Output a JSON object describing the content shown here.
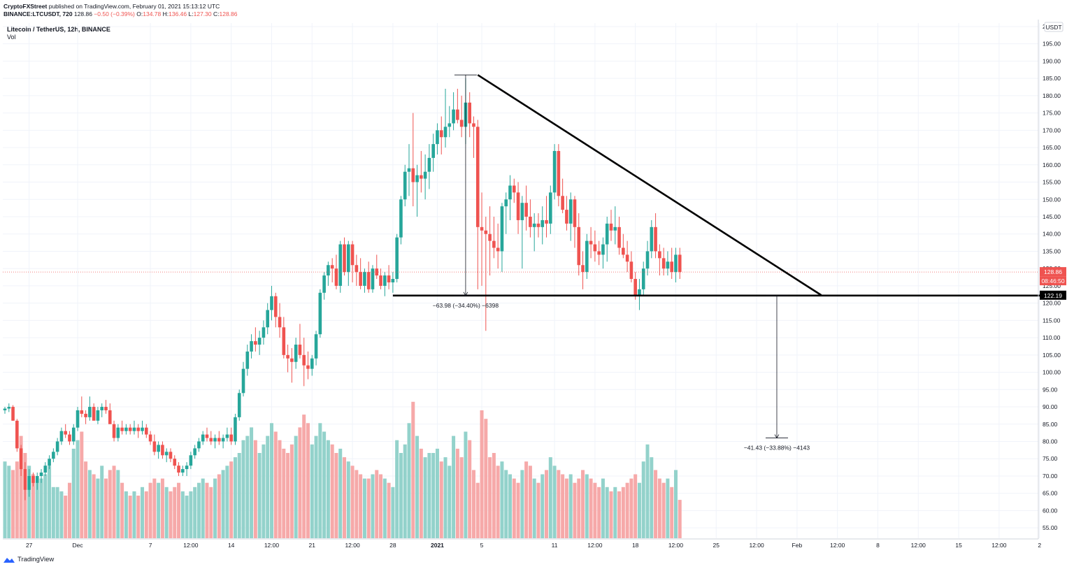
{
  "header": {
    "publisher": "CryptoFXStreet",
    "published_text": "published on TradingView.com, February 01, 2021 15:13:12 UTC",
    "symbol_line": "BINANCE:LTCUSDT, 720",
    "last_price": "128.86",
    "change": "−0.50 (−0.39%)",
    "o_label": "O:",
    "o_value": "134.78",
    "h_label": "H:",
    "h_value": "136.46",
    "l_label": "L:",
    "l_value": "127.30",
    "c_label": "C:",
    "c_value": "128.86"
  },
  "legend": {
    "title": "Litecoin / TetherUS, 12h, BINANCE",
    "volume": "Vol"
  },
  "footer": {
    "brand": "TradingView"
  },
  "colors": {
    "up": "#26a69a",
    "down": "#ef5350",
    "vol_up": "#93d2cb",
    "vol_down": "#f6a9a9",
    "grid": "#f0f3fa",
    "line": "#000000"
  },
  "chart_data": {
    "type": "candlestick",
    "title": "Litecoin / TetherUS, 12h, BINANCE",
    "ylim": [
      52,
      201
    ],
    "y_ticks": [
      55,
      60,
      65,
      70,
      75,
      80,
      85,
      90,
      95,
      100,
      105,
      110,
      115,
      120,
      125,
      130,
      135,
      140,
      145,
      150,
      155,
      160,
      165,
      170,
      175,
      180,
      185,
      190,
      195,
      200
    ],
    "currency_label": "USDT",
    "x_ticks": [
      {
        "i": 6,
        "label": "27"
      },
      {
        "i": 18,
        "label": "Dec"
      },
      {
        "i": 36,
        "label": "7"
      },
      {
        "i": 46,
        "label": "12:00"
      },
      {
        "i": 56,
        "label": "14"
      },
      {
        "i": 66,
        "label": "12:00"
      },
      {
        "i": 76,
        "label": "21"
      },
      {
        "i": 86,
        "label": "12:00"
      },
      {
        "i": 96,
        "label": "28"
      },
      {
        "i": 107,
        "label": "2021"
      },
      {
        "i": 118,
        "label": "5"
      },
      {
        "i": 136,
        "label": "11"
      },
      {
        "i": 146,
        "label": "12:00"
      },
      {
        "i": 156,
        "label": "18"
      },
      {
        "i": 166,
        "label": "12:00"
      },
      {
        "i": 176,
        "label": "25"
      },
      {
        "i": 186,
        "label": "12:00"
      },
      {
        "i": 196,
        "label": "Feb"
      },
      {
        "i": 206,
        "label": "12:00"
      },
      {
        "i": 216,
        "label": "8"
      },
      {
        "i": 226,
        "label": "12:00"
      },
      {
        "i": 236,
        "label": "15"
      },
      {
        "i": 246,
        "label": "12:00"
      },
      {
        "i": 256,
        "label": "2"
      }
    ],
    "candles": [
      [
        89,
        90,
        88,
        89.5,
        18
      ],
      [
        89.5,
        91,
        88.5,
        90,
        17
      ],
      [
        90,
        90.5,
        86,
        86,
        16
      ],
      [
        86,
        86.5,
        77,
        78,
        18
      ],
      [
        78,
        79,
        70,
        72,
        24
      ],
      [
        72,
        74,
        63,
        66,
        20
      ],
      [
        66,
        72,
        64,
        70,
        17
      ],
      [
        70,
        71,
        67,
        68,
        15
      ],
      [
        68,
        71,
        66,
        70,
        13
      ],
      [
        70,
        72,
        68,
        71,
        14
      ],
      [
        71,
        74,
        70,
        73,
        15
      ],
      [
        73,
        76,
        72,
        75,
        17
      ],
      [
        75,
        78,
        74,
        77,
        12
      ],
      [
        77,
        81,
        76,
        80,
        12
      ],
      [
        80,
        84,
        79,
        83,
        11
      ],
      [
        83,
        85,
        81,
        82,
        10
      ],
      [
        82,
        83,
        79,
        80,
        13
      ],
      [
        80,
        85,
        79,
        84,
        21
      ],
      [
        84,
        90,
        83,
        89,
        23
      ],
      [
        89,
        93,
        87,
        88,
        25
      ],
      [
        88,
        89,
        85,
        87,
        18
      ],
      [
        87,
        93,
        86,
        90,
        16
      ],
      [
        90,
        91,
        87,
        86,
        15
      ],
      [
        86,
        90,
        85,
        89,
        14
      ],
      [
        89,
        91,
        87,
        90,
        17
      ],
      [
        90,
        92,
        88,
        89,
        14
      ],
      [
        89,
        91,
        86,
        85,
        16
      ],
      [
        85,
        86,
        80,
        81,
        17
      ],
      [
        81,
        85,
        80,
        84,
        16
      ],
      [
        84,
        86,
        82,
        83,
        13
      ],
      [
        83,
        85,
        82,
        84,
        11
      ],
      [
        84,
        85,
        82,
        83,
        10
      ],
      [
        83,
        86,
        82,
        84,
        11
      ],
      [
        84,
        85,
        81,
        83,
        10
      ],
      [
        83,
        86,
        82,
        84,
        12
      ],
      [
        84,
        85,
        81,
        82,
        11
      ],
      [
        82,
        83,
        79,
        80,
        13
      ],
      [
        80,
        82,
        76,
        77,
        14
      ],
      [
        77,
        80,
        75,
        79,
        13
      ],
      [
        79,
        80,
        75,
        76,
        14
      ],
      [
        76,
        78,
        74,
        77,
        12
      ],
      [
        77,
        78,
        74,
        75,
        11
      ],
      [
        75,
        76,
        72,
        73,
        12
      ],
      [
        73,
        74,
        70,
        71,
        13
      ],
      [
        71,
        73,
        70,
        72,
        11
      ],
      [
        72,
        74,
        70,
        73,
        10
      ],
      [
        73,
        77,
        72,
        76,
        11
      ],
      [
        76,
        79,
        75,
        78,
        12
      ],
      [
        78,
        81,
        77,
        80,
        13
      ],
      [
        80,
        83,
        79,
        82,
        14
      ],
      [
        82,
        84,
        80,
        81,
        13
      ],
      [
        81,
        83,
        79,
        80,
        12
      ],
      [
        80,
        82,
        78,
        81,
        14
      ],
      [
        81,
        83,
        79,
        80,
        15
      ],
      [
        80,
        82,
        78,
        81,
        16
      ],
      [
        81,
        84,
        80,
        82,
        17
      ],
      [
        82,
        84,
        79,
        80,
        18
      ],
      [
        80,
        88,
        79,
        87,
        19
      ],
      [
        87,
        95,
        86,
        94,
        20
      ],
      [
        94,
        103,
        93,
        101,
        23
      ],
      [
        101,
        108,
        99,
        106,
        24
      ],
      [
        106,
        111,
        104,
        109,
        26
      ],
      [
        109,
        113,
        106,
        108,
        23
      ],
      [
        108,
        112,
        105,
        110,
        20
      ],
      [
        110,
        115,
        108,
        113,
        22
      ],
      [
        113,
        120,
        111,
        118,
        24
      ],
      [
        118,
        125,
        115,
        122,
        27
      ],
      [
        122,
        123,
        113,
        116,
        25
      ],
      [
        116,
        120,
        110,
        113,
        23
      ],
      [
        113,
        116,
        104,
        105,
        21
      ],
      [
        105,
        108,
        100,
        104,
        20
      ],
      [
        104,
        107,
        97,
        103,
        22
      ],
      [
        103,
        110,
        101,
        108,
        24
      ],
      [
        108,
        114,
        104,
        105,
        26
      ],
      [
        105,
        110,
        96,
        102,
        29
      ],
      [
        102,
        106,
        98,
        101,
        27
      ],
      [
        101,
        105,
        99,
        104,
        22
      ],
      [
        104,
        112,
        102,
        111,
        24
      ],
      [
        111,
        124,
        110,
        123,
        27
      ],
      [
        123,
        129,
        121,
        128,
        25
      ],
      [
        128,
        132,
        125,
        131,
        23
      ],
      [
        131,
        133,
        126,
        130,
        22
      ],
      [
        130,
        134,
        124,
        125,
        20
      ],
      [
        125,
        138,
        123,
        137,
        21
      ],
      [
        137,
        139,
        128,
        129,
        19
      ],
      [
        129,
        138,
        125,
        137,
        18
      ],
      [
        137,
        138,
        126,
        131,
        17
      ],
      [
        131,
        134,
        125,
        129,
        16
      ],
      [
        129,
        133,
        124,
        125,
        15
      ],
      [
        125,
        130,
        123,
        129,
        14
      ],
      [
        129,
        132,
        123,
        124,
        14
      ],
      [
        124,
        131,
        123,
        130,
        15
      ],
      [
        130,
        134,
        127,
        128,
        16
      ],
      [
        128,
        130,
        124,
        125,
        15
      ],
      [
        125,
        129,
        122,
        128,
        14
      ],
      [
        128,
        131,
        124,
        126,
        13
      ],
      [
        126,
        129,
        123,
        127,
        12
      ],
      [
        127,
        140,
        126,
        139,
        23
      ],
      [
        139,
        151,
        137,
        150,
        20
      ],
      [
        150,
        160,
        148,
        158,
        22
      ],
      [
        158,
        166,
        151,
        159,
        27
      ],
      [
        159,
        175,
        148,
        155,
        32
      ],
      [
        155,
        160,
        145,
        157,
        24
      ],
      [
        157,
        164,
        152,
        156,
        21
      ],
      [
        156,
        163,
        150,
        158,
        19
      ],
      [
        158,
        166,
        153,
        162,
        20
      ],
      [
        162,
        169,
        158,
        166,
        20
      ],
      [
        166,
        172,
        163,
        170,
        21
      ],
      [
        170,
        174,
        163,
        168,
        18
      ],
      [
        168,
        182,
        165,
        171,
        19
      ],
      [
        171,
        177,
        168,
        172,
        17
      ],
      [
        172,
        181,
        170,
        176,
        24
      ],
      [
        176,
        182,
        172,
        173,
        21
      ],
      [
        173,
        180,
        168,
        171,
        19
      ],
      [
        171,
        185,
        166,
        178,
        25
      ],
      [
        178,
        181,
        168,
        172,
        23
      ],
      [
        172,
        174,
        162,
        171,
        16
      ],
      [
        171,
        173,
        124,
        142,
        13
      ],
      [
        142,
        152,
        125,
        141,
        30
      ],
      [
        141,
        145,
        112,
        140,
        28
      ],
      [
        140,
        148,
        128,
        138,
        19
      ],
      [
        138,
        145,
        133,
        136,
        20
      ],
      [
        136,
        143,
        130,
        135,
        17
      ],
      [
        135,
        149,
        129,
        148,
        18
      ],
      [
        148,
        152,
        140,
        150,
        16
      ],
      [
        150,
        157,
        144,
        154,
        15
      ],
      [
        154,
        156,
        149,
        152,
        14
      ],
      [
        152,
        155,
        140,
        144,
        13
      ],
      [
        144,
        151,
        130,
        149,
        16
      ],
      [
        149,
        154,
        141,
        145,
        18
      ],
      [
        145,
        150,
        139,
        142,
        17
      ],
      [
        142,
        146,
        135,
        143,
        14
      ],
      [
        143,
        146,
        139,
        142,
        13
      ],
      [
        142,
        148,
        137,
        144,
        15
      ],
      [
        144,
        151,
        139,
        143,
        16
      ],
      [
        143,
        154,
        140,
        152,
        19
      ],
      [
        152,
        166,
        150,
        164,
        17
      ],
      [
        164,
        166,
        148,
        151,
        16
      ],
      [
        151,
        156,
        146,
        147,
        15
      ],
      [
        147,
        151,
        141,
        143,
        14
      ],
      [
        143,
        152,
        138,
        150,
        15
      ],
      [
        150,
        151,
        136,
        142,
        13
      ],
      [
        142,
        146,
        128,
        131,
        14
      ],
      [
        131,
        135,
        124,
        129,
        16
      ],
      [
        129,
        140,
        127,
        138,
        15
      ],
      [
        138,
        142,
        133,
        137,
        14
      ],
      [
        137,
        141,
        132,
        135,
        13
      ],
      [
        135,
        138,
        131,
        134,
        12
      ],
      [
        134,
        139,
        130,
        137,
        14
      ],
      [
        137,
        145,
        132,
        143,
        12
      ],
      [
        143,
        147,
        138,
        141,
        11
      ],
      [
        141,
        148,
        137,
        142,
        12
      ],
      [
        142,
        145,
        134,
        136,
        11
      ],
      [
        136,
        140,
        133,
        134,
        12
      ],
      [
        134,
        138,
        129,
        132,
        13
      ],
      [
        132,
        135,
        126,
        127,
        14
      ],
      [
        127,
        129,
        121,
        122,
        15
      ],
      [
        122,
        127,
        118,
        124,
        13
      ],
      [
        124,
        132,
        122,
        130,
        18
      ],
      [
        130,
        138,
        128,
        135,
        22
      ],
      [
        135,
        144,
        133,
        142,
        19
      ],
      [
        142,
        146,
        133,
        135,
        16
      ],
      [
        135,
        137,
        128,
        133,
        14
      ],
      [
        133,
        136,
        128,
        130,
        13
      ],
      [
        130,
        135,
        128,
        132,
        14
      ],
      [
        132,
        136,
        127,
        129,
        12
      ],
      [
        129,
        136,
        126,
        134,
        16
      ],
      [
        134,
        136,
        127,
        129,
        9
      ]
    ],
    "resistance_line": {
      "from": [
        117,
        186
      ],
      "to": [
        202,
        122.3
      ]
    },
    "support_line": {
      "from": [
        96,
        122.19
      ],
      "to": [
        259,
        122.19
      ]
    },
    "measure_up": {
      "x_index": 114,
      "top": 186,
      "bottom": 122.2,
      "label": "−63.98 (−34.40%) −6398"
    },
    "measure_down": {
      "x_index": 191,
      "top": 122.2,
      "bottom": 81,
      "label": "−41.43 (−33.88%) −4143"
    },
    "current_price_label": "128.86",
    "countdown_label": "08:46:50",
    "support_price_label": "122.19"
  }
}
